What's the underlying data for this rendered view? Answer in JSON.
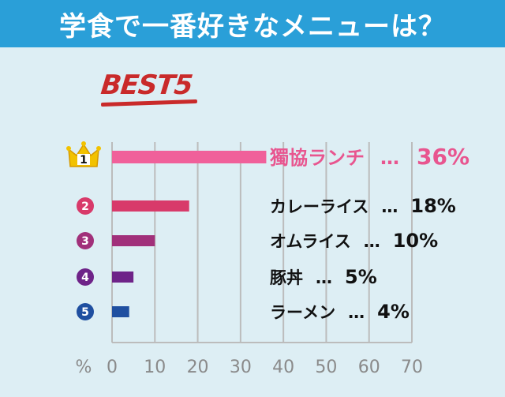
{
  "title": "学食で一番好きなメニューは？",
  "best_label": "BEST5",
  "chart_data": {
    "type": "bar",
    "orientation": "horizontal",
    "categories": [
      "獨協ランチ",
      "カレーライス",
      "オムライス",
      "豚丼",
      "ラーメン"
    ],
    "values": [
      36,
      18,
      10,
      5,
      4
    ],
    "ranks": [
      "1",
      "2",
      "3",
      "4",
      "5"
    ],
    "separator": "…",
    "unit": "%",
    "xlabel": "%",
    "xlim": [
      0,
      70
    ],
    "xticks": [
      0,
      10,
      20,
      30,
      40,
      50,
      60,
      70
    ],
    "grid": true,
    "bar_colors": [
      "#f0609a",
      "#d83a6a",
      "#a1307a",
      "#6e2388",
      "#1f4fa0"
    ],
    "rank_colors": [
      "#f2c200",
      "#d83a6a",
      "#a1307a",
      "#6e2388",
      "#1f4fa0"
    ],
    "label_colors": [
      "#e8558f",
      "#111111",
      "#111111",
      "#111111",
      "#111111"
    ]
  }
}
